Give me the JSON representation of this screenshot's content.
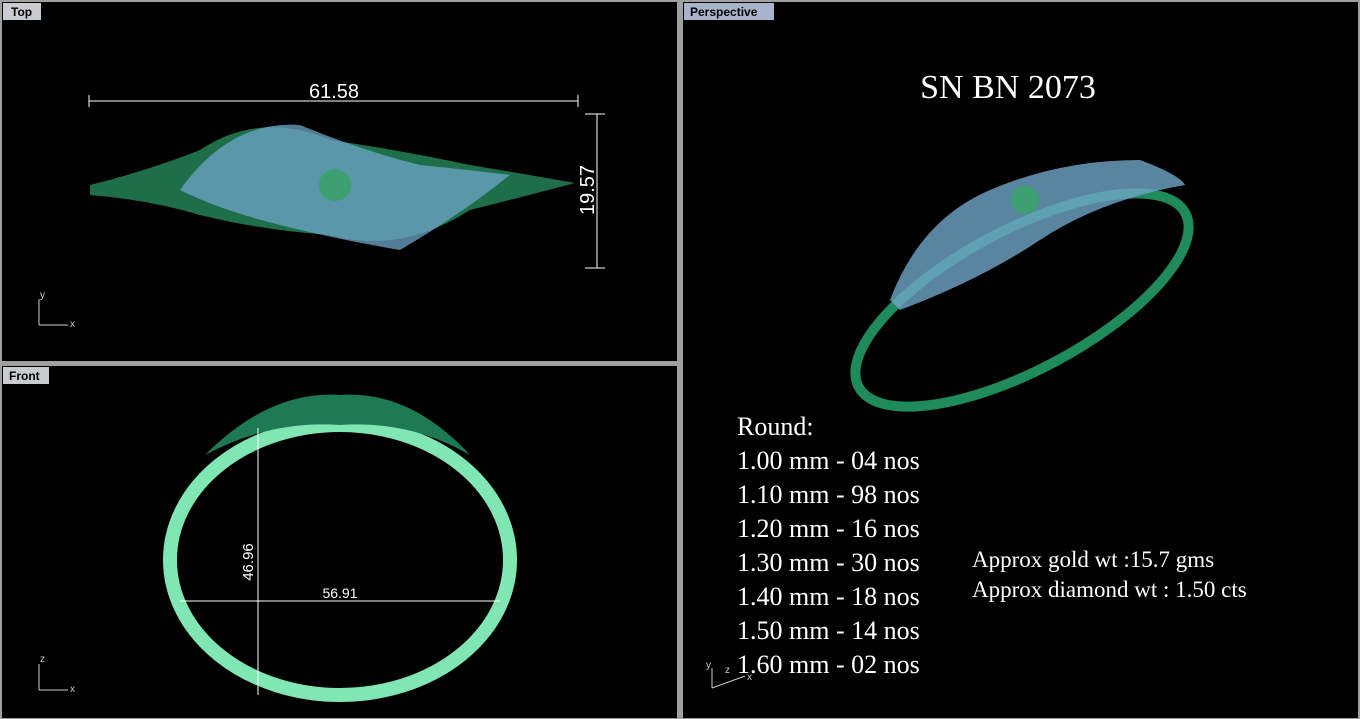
{
  "viewports": {
    "top": {
      "label": "Top",
      "dimensions": [
        "61.58",
        "19.57"
      ],
      "axes": [
        "y",
        "x"
      ]
    },
    "front": {
      "label": "Front",
      "dimensions": [
        "46.96",
        "56.91"
      ],
      "axes": [
        "z",
        "x"
      ]
    },
    "perspective": {
      "label": "Perspective",
      "title": "SN BN 2073",
      "axes": [
        "y",
        "z",
        "x"
      ],
      "stones": {
        "heading": "Round:",
        "lines": [
          "1.00 mm - 04 nos",
          "1.10 mm - 98 nos",
          "1.20 mm - 16 nos",
          "1.30 mm - 30 nos",
          "1.40 mm - 18 nos",
          "1.50 mm - 14 nos",
          "1.60 mm - 02 nos"
        ]
      },
      "weights": [
        "Approx gold wt :15.7 gms",
        "Approx diamond wt : 1.50 cts"
      ]
    }
  }
}
